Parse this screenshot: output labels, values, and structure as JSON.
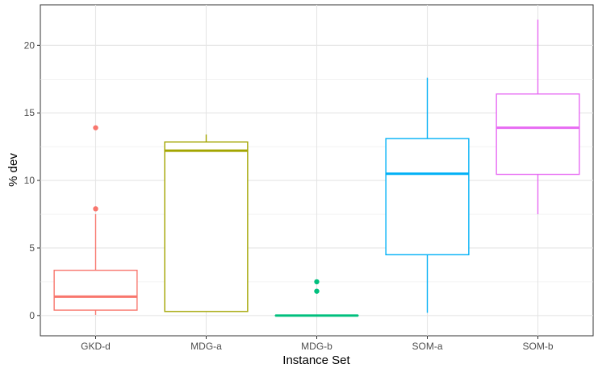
{
  "chart_data": {
    "type": "boxplot",
    "xlabel": "Instance Set",
    "ylabel": "% dev",
    "ylim": [
      -1.5,
      23
    ],
    "y_ticks": [
      0,
      5,
      10,
      15,
      20
    ],
    "grid": true,
    "legend": "none",
    "categories": [
      "GKD-d",
      "MDG-a",
      "MDG-b",
      "SOM-a",
      "SOM-b"
    ],
    "boxes": [
      {
        "category": "GKD-d",
        "color": "#F8766D",
        "whisker_low": 0.05,
        "q1": 0.4,
        "median": 1.4,
        "q3": 3.35,
        "whisker_high": 7.5,
        "outliers": [
          7.9,
          13.9
        ]
      },
      {
        "category": "MDG-a",
        "color": "#A3A500",
        "whisker_low": 0.3,
        "q1": 0.3,
        "median": 12.2,
        "q3": 12.85,
        "whisker_high": 13.4,
        "outliers": []
      },
      {
        "category": "MDG-b",
        "color": "#00BF7D",
        "whisker_low": 0.0,
        "q1": 0.0,
        "median": 0.0,
        "q3": 0.0,
        "whisker_high": 0.0,
        "outliers": [
          1.8,
          2.5
        ]
      },
      {
        "category": "SOM-a",
        "color": "#00B0F6",
        "whisker_low": 0.2,
        "q1": 4.5,
        "median": 10.5,
        "q3": 13.1,
        "whisker_high": 17.6,
        "outliers": []
      },
      {
        "category": "SOM-b",
        "color": "#E76BF3",
        "whisker_low": 7.5,
        "q1": 10.45,
        "median": 13.9,
        "q3": 16.4,
        "whisker_high": 21.9,
        "outliers": []
      }
    ]
  }
}
